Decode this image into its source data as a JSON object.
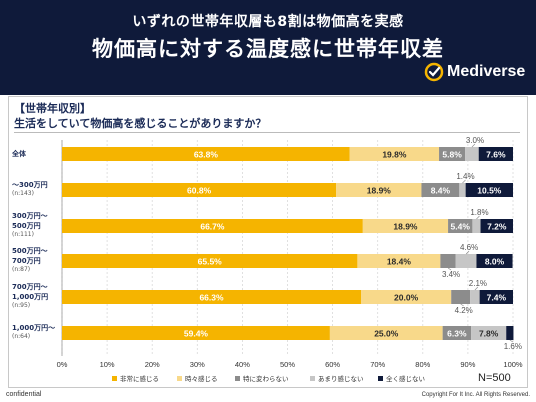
{
  "header": {
    "subtitle": "いずれの世帯年収層も8割は物価高を実感",
    "title": "物価高に対する温度感に世帯年収差",
    "brand": "Mediverse"
  },
  "panel": {
    "section_label": "【世帯年収別】",
    "question": "生活をしていて物価高を感じることがありますか？",
    "n_label": "N=500"
  },
  "footer": {
    "left": "confidential",
    "right": "Copyright For It Inc. All Rights Reserved."
  },
  "colors": {
    "header_bg": "#0f1a3a",
    "brand_accent": "#f5b400",
    "series": [
      "#f5b400",
      "#f8d98a",
      "#8c8c8c",
      "#c6c6c6",
      "#0f1a3a"
    ]
  },
  "chart_data": {
    "type": "bar",
    "orientation": "horizontal",
    "stacked": true,
    "categories": [
      {
        "label": "全体",
        "sub": ""
      },
      {
        "label": "～300万円",
        "sub": "(n:143)"
      },
      {
        "label": "300万円～\n500万円",
        "sub": "(n:111)"
      },
      {
        "label": "500万円～\n700万円",
        "sub": "(n:87)"
      },
      {
        "label": "700万円～\n1,000万円",
        "sub": "(n:95)"
      },
      {
        "label": "1,000万円～",
        "sub": "(n:64)"
      }
    ],
    "series": [
      {
        "name": "非常に感じる",
        "values": [
          63.8,
          60.8,
          66.7,
          65.5,
          66.3,
          59.4
        ]
      },
      {
        "name": "時々感じる",
        "values": [
          19.8,
          18.9,
          18.9,
          18.4,
          20.0,
          25.0
        ]
      },
      {
        "name": "特に変わらない",
        "values": [
          5.8,
          8.4,
          5.4,
          3.4,
          4.2,
          6.3
        ]
      },
      {
        "name": "あまり感じない",
        "values": [
          3.0,
          1.4,
          1.8,
          4.6,
          2.1,
          7.8
        ]
      },
      {
        "name": "全く感じない",
        "values": [
          7.6,
          10.5,
          7.2,
          8.0,
          7.4,
          1.6
        ]
      }
    ],
    "inside_labels": [
      [
        "63.8%",
        "19.8%",
        "5.8%",
        "",
        "7.6%"
      ],
      [
        "60.8%",
        "18.9%",
        "8.4%",
        "",
        "10.5%"
      ],
      [
        "66.7%",
        "18.9%",
        "5.4%",
        "",
        "7.2%"
      ],
      [
        "65.5%",
        "18.4%",
        "",
        "",
        "8.0%"
      ],
      [
        "66.3%",
        "20.0%",
        "",
        "",
        "7.4%"
      ],
      [
        "59.4%",
        "25.0%",
        "6.3%",
        "7.8%",
        ""
      ]
    ],
    "callouts": [
      {
        "row": 0,
        "series": 3,
        "text": "3.0%",
        "side": "above"
      },
      {
        "row": 1,
        "series": 3,
        "text": "1.4%",
        "side": "above"
      },
      {
        "row": 2,
        "series": 3,
        "text": "1.8%",
        "side": "above"
      },
      {
        "row": 3,
        "series": 3,
        "text": "4.6%",
        "side": "above"
      },
      {
        "row": 3,
        "series": 2,
        "text": "3.4%",
        "side": "below"
      },
      {
        "row": 4,
        "series": 3,
        "text": "2.1%",
        "side": "above"
      },
      {
        "row": 4,
        "series": 2,
        "text": "4.2%",
        "side": "below"
      },
      {
        "row": 5,
        "series": 4,
        "text": "1.6%",
        "side": "below"
      }
    ],
    "x_ticks": [
      "0%",
      "10%",
      "20%",
      "30%",
      "40%",
      "50%",
      "60%",
      "70%",
      "80%",
      "90%",
      "100%"
    ],
    "xlim": [
      0,
      100
    ],
    "grid": true,
    "legend_position": "bottom"
  }
}
